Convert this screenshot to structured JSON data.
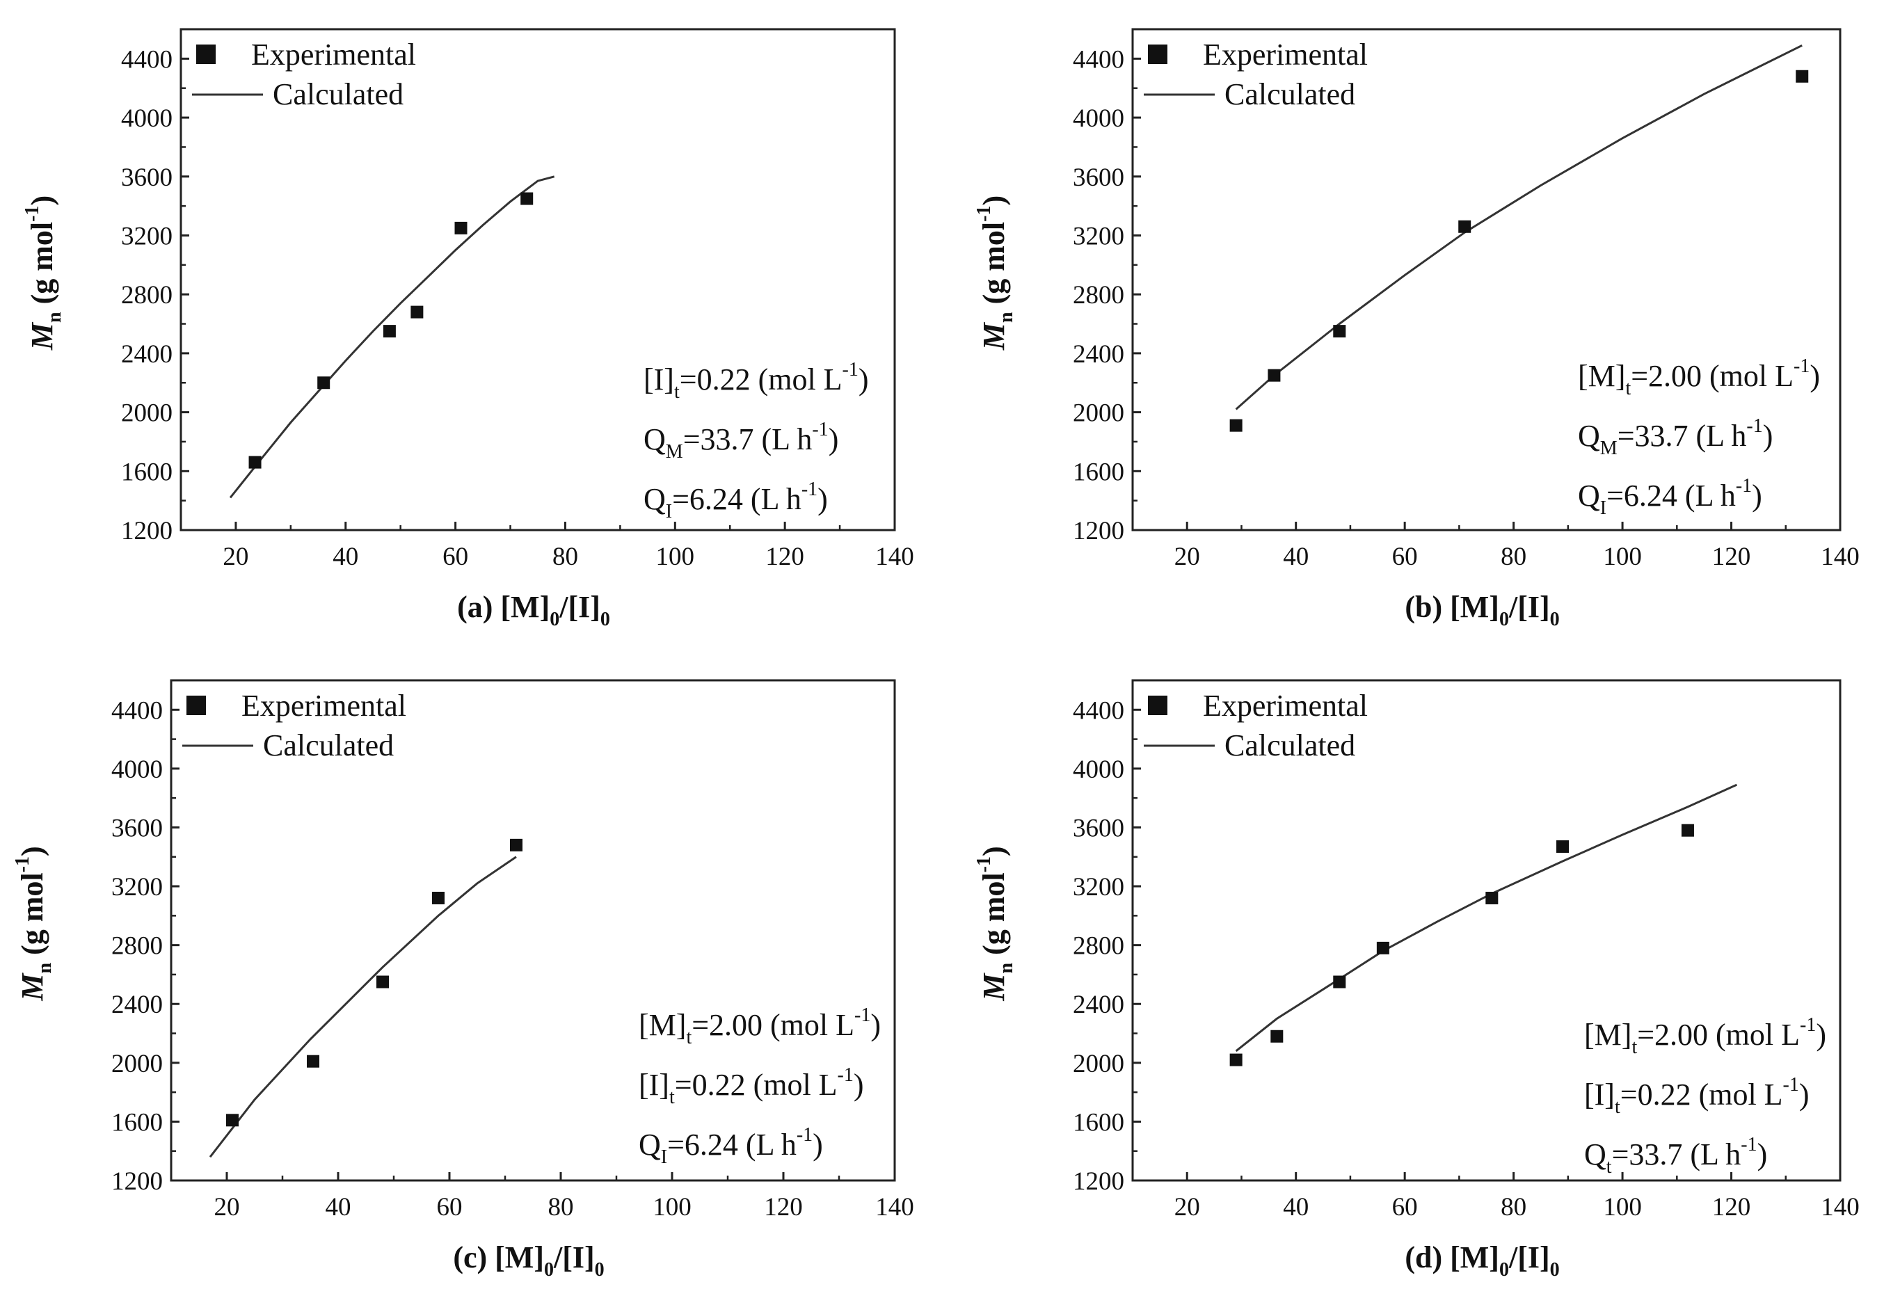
{
  "colors": {
    "line": "#333333",
    "marker": "#111111",
    "frame": "#222222",
    "background": "#ffffff"
  },
  "chart_data": [
    {
      "id": "a",
      "type": "scatter",
      "title": "",
      "xlabel": {
        "prefix": "(a) ",
        "m": "[M]",
        "m_sub": "0",
        "slash": "/",
        "i": "[I]",
        "i_sub": "0"
      },
      "ylabel": {
        "var": "M",
        "var_sub": "n",
        "unit_open": " (g mol",
        "unit_sup": "-1",
        "unit_close": ")"
      },
      "xlim": [
        10,
        140
      ],
      "ylim": [
        1200,
        4600
      ],
      "xticks": [
        20,
        40,
        60,
        80,
        100,
        120,
        140
      ],
      "yticks": [
        1200,
        1600,
        2000,
        2400,
        2800,
        3200,
        3600,
        4000,
        4400
      ],
      "legend": {
        "experimental": "Experimental",
        "calculated": "Calculated",
        "position": "top-left"
      },
      "series": [
        {
          "name": "Experimental",
          "kind": "points",
          "x": [
            23.5,
            36,
            48,
            53,
            61,
            73
          ],
          "y": [
            1660,
            2200,
            2550,
            2680,
            3250,
            3450
          ]
        },
        {
          "name": "Calculated",
          "kind": "line",
          "x": [
            19,
            25,
            30,
            35,
            40,
            45,
            50,
            55,
            60,
            65,
            70,
            75,
            78
          ],
          "y": [
            1420,
            1700,
            1930,
            2140,
            2350,
            2550,
            2740,
            2920,
            3100,
            3270,
            3430,
            3570,
            3600
          ]
        }
      ],
      "conditions": [
        {
          "lhs": "[I]",
          "sub": "t",
          "value": "=0.22 (mol L",
          "sup": "-1",
          "end": ")"
        },
        {
          "lhs": "Q",
          "sub": "M",
          "value": "=33.7 (L h",
          "sup": "-1",
          "end": ")"
        },
        {
          "lhs": "Q",
          "sub": "I",
          "value": "=6.24 (L h",
          "sup": "-1",
          "end": ")"
        }
      ]
    },
    {
      "id": "b",
      "type": "scatter",
      "title": "",
      "xlabel": {
        "prefix": "(b) ",
        "m": "[M]",
        "m_sub": "0",
        "slash": "/",
        "i": "[I]",
        "i_sub": "0"
      },
      "ylabel": {
        "var": "M",
        "var_sub": "n",
        "unit_open": " (g mol",
        "unit_sup": "-1",
        "unit_close": ")"
      },
      "xlim": [
        10,
        140
      ],
      "ylim": [
        1200,
        4600
      ],
      "xticks": [
        20,
        40,
        60,
        80,
        100,
        120,
        140
      ],
      "yticks": [
        1200,
        1600,
        2000,
        2400,
        2800,
        3200,
        3600,
        4000,
        4400
      ],
      "legend": {
        "experimental": "Experimental",
        "calculated": "Calculated",
        "position": "top-left"
      },
      "series": [
        {
          "name": "Experimental",
          "kind": "points",
          "x": [
            29,
            36,
            48,
            71,
            133
          ],
          "y": [
            1910,
            2250,
            2550,
            3260,
            4280
          ]
        },
        {
          "name": "Calculated",
          "kind": "line",
          "x": [
            29,
            36,
            48,
            60,
            71,
            85,
            100,
            115,
            133
          ],
          "y": [
            2020,
            2250,
            2600,
            2930,
            3220,
            3540,
            3860,
            4160,
            4490
          ]
        }
      ],
      "conditions": [
        {
          "lhs": "[M]",
          "sub": "t",
          "value": "=2.00 (mol L",
          "sup": "-1",
          "end": ")"
        },
        {
          "lhs": "Q",
          "sub": "M",
          "value": "=33.7 (L h",
          "sup": "-1",
          "end": ")"
        },
        {
          "lhs": "Q",
          "sub": "I",
          "value": "=6.24 (L h",
          "sup": "-1",
          "end": ")"
        }
      ]
    },
    {
      "id": "c",
      "type": "scatter",
      "title": "",
      "xlabel": {
        "prefix": "(c) ",
        "m": "[M]",
        "m_sub": "0",
        "slash": "/",
        "i": "[I]",
        "i_sub": "0"
      },
      "ylabel": {
        "var": "M",
        "var_sub": "n",
        "unit_open": " (g mol",
        "unit_sup": "-1",
        "unit_close": ")"
      },
      "xlim": [
        10,
        140
      ],
      "ylim": [
        1200,
        4600
      ],
      "xticks": [
        20,
        40,
        60,
        80,
        100,
        120,
        140
      ],
      "yticks": [
        1200,
        1600,
        2000,
        2400,
        2800,
        3200,
        3600,
        4000,
        4400
      ],
      "legend": {
        "experimental": "Experimental",
        "calculated": "Calculated",
        "position": "top-left"
      },
      "series": [
        {
          "name": "Experimental",
          "kind": "points",
          "x": [
            21,
            35.5,
            48,
            58,
            72
          ],
          "y": [
            1610,
            2010,
            2550,
            3120,
            3480
          ]
        },
        {
          "name": "Calculated",
          "kind": "line",
          "x": [
            17,
            25,
            35,
            48,
            58,
            65,
            72
          ],
          "y": [
            1360,
            1750,
            2160,
            2650,
            3000,
            3220,
            3400
          ]
        }
      ],
      "conditions": [
        {
          "lhs": "[M]",
          "sub": "t",
          "value": "=2.00 (mol L",
          "sup": "-1",
          "end": ")"
        },
        {
          "lhs": "[I]",
          "sub": "t",
          "value": "=0.22 (mol L",
          "sup": "-1",
          "end": ")"
        },
        {
          "lhs": "Q",
          "sub": "I",
          "value": "=6.24 (L h",
          "sup": "-1",
          "end": ")"
        }
      ]
    },
    {
      "id": "d",
      "type": "scatter",
      "title": "",
      "xlabel": {
        "prefix": "(d) ",
        "m": "[M]",
        "m_sub": "0",
        "slash": "/",
        "i": "[I]",
        "i_sub": "0"
      },
      "ylabel": {
        "var": "M",
        "var_sub": "n",
        "unit_open": " (g mol",
        "unit_sup": "-1",
        "unit_close": ")"
      },
      "xlim": [
        10,
        140
      ],
      "ylim": [
        1200,
        4600
      ],
      "xticks": [
        20,
        40,
        60,
        80,
        100,
        120,
        140
      ],
      "yticks": [
        1200,
        1600,
        2000,
        2400,
        2800,
        3200,
        3600,
        4000,
        4400
      ],
      "legend": {
        "experimental": "Experimental",
        "calculated": "Calculated",
        "position": "top-left"
      },
      "series": [
        {
          "name": "Experimental",
          "kind": "points",
          "x": [
            29,
            36.5,
            48,
            56,
            76,
            89,
            112
          ],
          "y": [
            2020,
            2180,
            2550,
            2780,
            3120,
            3470,
            3580
          ]
        },
        {
          "name": "Calculated",
          "kind": "line",
          "x": [
            29,
            36.5,
            48,
            56,
            66,
            76,
            89,
            100,
            112,
            121
          ],
          "y": [
            2080,
            2300,
            2570,
            2760,
            2960,
            3150,
            3370,
            3550,
            3740,
            3890
          ]
        }
      ],
      "conditions": [
        {
          "lhs": "[M]",
          "sub": "t",
          "value": "=2.00 (mol L",
          "sup": "-1",
          "end": ")"
        },
        {
          "lhs": "[I]",
          "sub": "t",
          "value": "=0.22 (mol L",
          "sup": "-1",
          "end": ")"
        },
        {
          "lhs": "Q",
          "sub": "t",
          "value": "=33.7 (L h",
          "sup": "-1",
          "end": ")"
        }
      ]
    }
  ]
}
